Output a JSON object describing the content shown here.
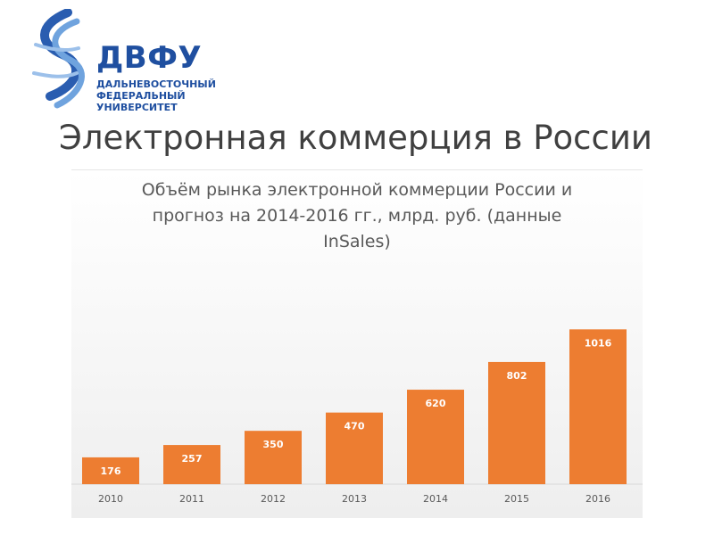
{
  "logo": {
    "abbr": "ДВФУ",
    "name": "ДАЛЬНЕВОСТОЧНЫЙ\nФЕДЕРАЛЬНЫЙ\nУНИВЕРСИТЕТ"
  },
  "slide_title": "Электронная коммерция в России",
  "colors": {
    "bar": "#ed7d31",
    "bar_label": "#ffffff",
    "axis_text": "#595959",
    "brand": "#1f4fa0"
  },
  "chart_data": {
    "type": "bar",
    "title": "Объём рынка электронной коммерции России и прогноз на 2014-2016 гг., млрд. руб. (данные InSales)",
    "categories": [
      "2010",
      "2011",
      "2012",
      "2013",
      "2014",
      "2015",
      "2016"
    ],
    "values": [
      176,
      257,
      350,
      470,
      620,
      802,
      1016
    ],
    "xlabel": "",
    "ylabel": "",
    "ylim": [
      0,
      1100
    ],
    "grid": false,
    "legend": "none"
  }
}
